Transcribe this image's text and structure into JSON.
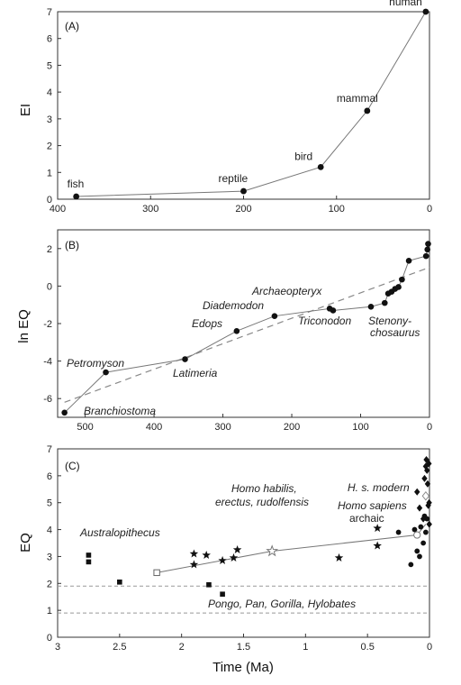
{
  "chart_data": [
    {
      "type": "line",
      "panel_label": "(A)",
      "ylabel": "EI",
      "xlim": [
        400,
        0
      ],
      "ylim": [
        0,
        7
      ],
      "xticks": [
        400,
        300,
        200,
        100,
        0
      ],
      "yticks": [
        0,
        1,
        2,
        3,
        4,
        5,
        6,
        7
      ],
      "points": [
        {
          "x": 380,
          "y": 0.1,
          "label": "fish"
        },
        {
          "x": 200,
          "y": 0.3,
          "label": "reptile"
        },
        {
          "x": 117,
          "y": 1.2,
          "label": "bird"
        },
        {
          "x": 67,
          "y": 3.3,
          "label": "mammal"
        },
        {
          "x": 4,
          "y": 7.0,
          "label": "human"
        }
      ]
    },
    {
      "type": "line",
      "panel_label": "(B)",
      "ylabel": "ln EQ",
      "xlim": [
        540,
        0
      ],
      "ylim": [
        -7,
        3
      ],
      "xticks": [
        500,
        400,
        300,
        200,
        100,
        0
      ],
      "yticks": [
        2,
        0,
        -2,
        -4,
        -6
      ],
      "series": [
        {
          "style": "solid-markers",
          "points": [
            {
              "x": 530,
              "y": -6.75
            },
            {
              "x": 470,
              "y": -4.6
            },
            {
              "x": 355,
              "y": -3.9
            },
            {
              "x": 280,
              "y": -2.4
            },
            {
              "x": 225,
              "y": -1.6
            },
            {
              "x": 145,
              "y": -1.2
            },
            {
              "x": 140,
              "y": -1.3
            },
            {
              "x": 85,
              "y": -1.1
            },
            {
              "x": 65,
              "y": -0.9
            },
            {
              "x": 60,
              "y": -0.4
            },
            {
              "x": 55,
              "y": -0.3
            },
            {
              "x": 50,
              "y": -0.15
            },
            {
              "x": 45,
              "y": -0.05
            },
            {
              "x": 40,
              "y": 0.35
            },
            {
              "x": 30,
              "y": 1.35
            },
            {
              "x": 5,
              "y": 1.6
            },
            {
              "x": 3,
              "y": 1.95
            },
            {
              "x": 2,
              "y": 2.25
            }
          ]
        },
        {
          "style": "dashed-fit",
          "points": [
            {
              "x": 530,
              "y": -6.2
            },
            {
              "x": 0,
              "y": 1.0
            }
          ]
        }
      ],
      "annotations": [
        "Petromyson",
        "Branchiostoma",
        "Latimeria",
        "Edops",
        "Diademodon",
        "Archaeopteryx",
        "Triconodon",
        "Stenony-",
        "chosaurus"
      ]
    },
    {
      "type": "scatter",
      "panel_label": "(C)",
      "ylabel": "EQ",
      "xlabel": "Time (Ma)",
      "xlim": [
        3,
        0
      ],
      "ylim": [
        0,
        7
      ],
      "xticks": [
        3,
        2.5,
        2,
        1.5,
        1,
        0.5,
        0
      ],
      "yticks": [
        0,
        1,
        2,
        3,
        4,
        5,
        6,
        7
      ],
      "reference_lines": [
        {
          "y": 1.9,
          "style": "dashed"
        },
        {
          "y": 0.9,
          "style": "dashed"
        }
      ],
      "trend_line": [
        {
          "x": 2.2,
          "y": 2.4
        },
        {
          "x": 1.27,
          "y": 3.2
        },
        {
          "x": 0.1,
          "y": 3.8
        },
        {
          "x": 0.03,
          "y": 4.2
        }
      ],
      "series": [
        {
          "marker": "square",
          "points": [
            {
              "x": 2.75,
              "y": 3.05
            },
            {
              "x": 2.75,
              "y": 2.8
            },
            {
              "x": 2.5,
              "y": 2.05
            },
            {
              "x": 1.78,
              "y": 1.95
            },
            {
              "x": 1.67,
              "y": 1.6
            }
          ]
        },
        {
          "marker": "open-square",
          "points": [
            {
              "x": 2.2,
              "y": 2.4
            }
          ]
        },
        {
          "marker": "star",
          "points": [
            {
              "x": 1.9,
              "y": 3.1
            },
            {
              "x": 1.9,
              "y": 2.7
            },
            {
              "x": 1.8,
              "y": 3.05
            },
            {
              "x": 1.67,
              "y": 2.85
            },
            {
              "x": 1.58,
              "y": 2.95
            },
            {
              "x": 1.55,
              "y": 3.25
            },
            {
              "x": 0.73,
              "y": 2.95
            },
            {
              "x": 0.42,
              "y": 4.05
            },
            {
              "x": 0.42,
              "y": 3.4
            }
          ]
        },
        {
          "marker": "open-star",
          "points": [
            {
              "x": 1.27,
              "y": 3.2
            }
          ]
        },
        {
          "marker": "circle",
          "points": [
            {
              "x": 0.25,
              "y": 3.9
            },
            {
              "x": 0.15,
              "y": 2.7
            },
            {
              "x": 0.12,
              "y": 4.0
            },
            {
              "x": 0.1,
              "y": 3.2
            },
            {
              "x": 0.08,
              "y": 3.0
            },
            {
              "x": 0.07,
              "y": 4.1
            },
            {
              "x": 0.05,
              "y": 3.5
            },
            {
              "x": 0.04,
              "y": 4.5
            },
            {
              "x": 0.03,
              "y": 3.9
            },
            {
              "x": 0.02,
              "y": 4.4
            }
          ]
        },
        {
          "marker": "open-circle",
          "points": [
            {
              "x": 0.1,
              "y": 3.8
            }
          ]
        },
        {
          "marker": "diamond",
          "points": [
            {
              "x": 0.1,
              "y": 5.4
            },
            {
              "x": 0.08,
              "y": 4.8
            },
            {
              "x": 0.05,
              "y": 4.4
            },
            {
              "x": 0.04,
              "y": 5.9
            },
            {
              "x": 0.03,
              "y": 6.35
            },
            {
              "x": 0.025,
              "y": 6.6
            },
            {
              "x": 0.02,
              "y": 6.2
            },
            {
              "x": 0.015,
              "y": 5.7
            },
            {
              "x": 0.01,
              "y": 4.9
            },
            {
              "x": 0.005,
              "y": 6.45
            },
            {
              "x": 0.003,
              "y": 5.0
            },
            {
              "x": 0.002,
              "y": 4.2
            }
          ]
        },
        {
          "marker": "open-diamond",
          "points": [
            {
              "x": 0.03,
              "y": 5.25
            }
          ]
        }
      ],
      "annotations": [
        "Australopithecus",
        "Homo habilis,",
        "erectus, rudolfensis",
        "H. s. modern",
        "Homo sapiens",
        "archaic",
        "Pongo, Pan, Gorilla, Hylobates"
      ]
    }
  ]
}
